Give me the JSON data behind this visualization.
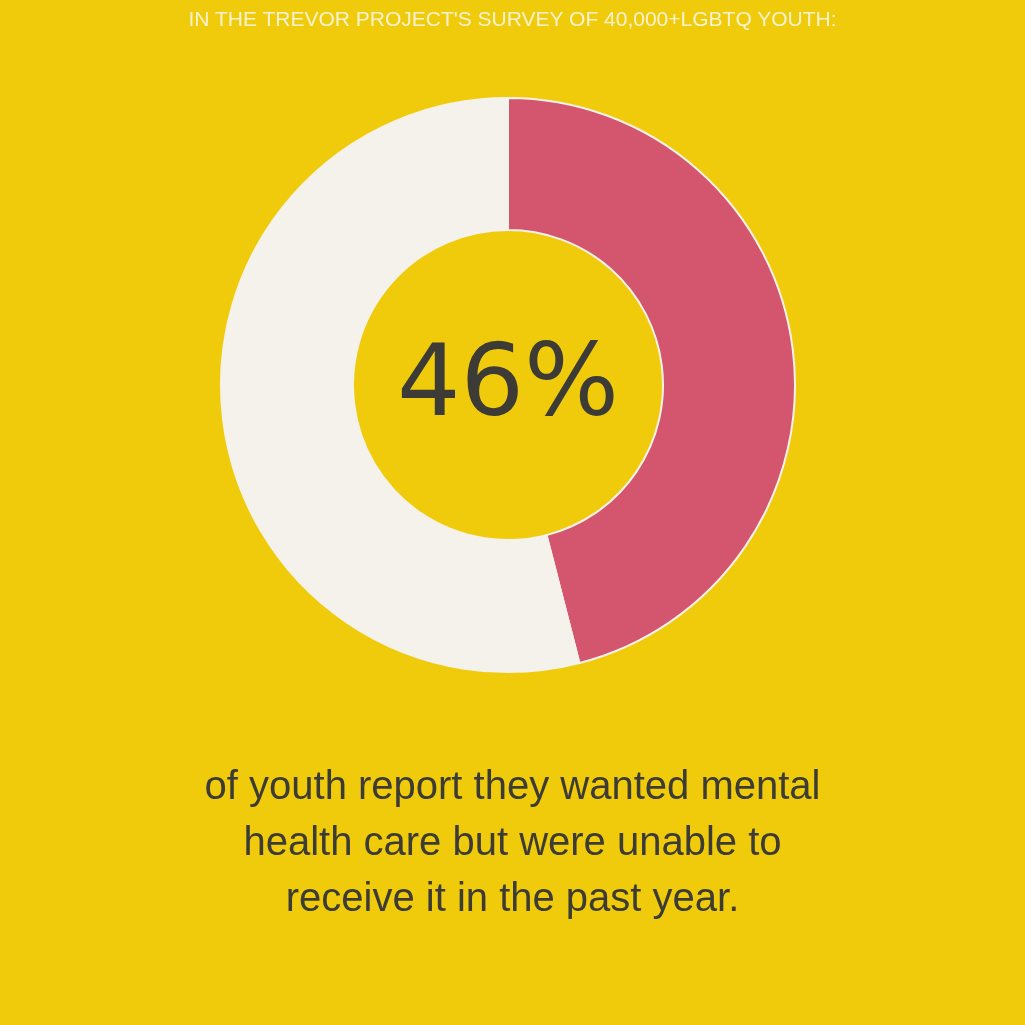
{
  "chart_data": {
    "type": "donut",
    "title": "IN THE TREVOR PROJECT'S SURVEY OF 40,000+LGBTQ YOUTH:",
    "categories": [
      null,
      null
    ],
    "values": [
      46,
      54
    ],
    "colors": [
      "#d4566e",
      "#f4f2ea"
    ],
    "value_labels": [
      "46%",
      null
    ],
    "annotations": [
      "of youth report they wanted mental health care but were unable to receive it in the past year."
    ]
  }
}
